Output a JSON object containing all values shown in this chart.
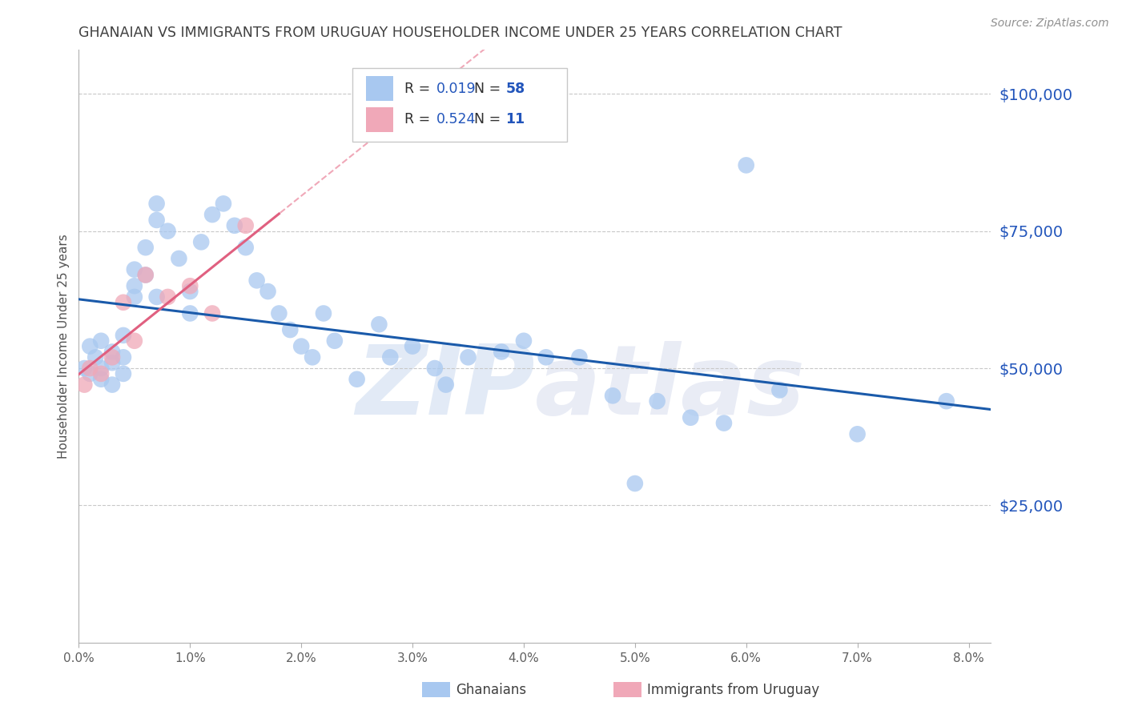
{
  "title": "GHANAIAN VS IMMIGRANTS FROM URUGUAY HOUSEHOLDER INCOME UNDER 25 YEARS CORRELATION CHART",
  "source": "Source: ZipAtlas.com",
  "ylabel": "Householder Income Under 25 years",
  "ytick_labels": [
    "$25,000",
    "$50,000",
    "$75,000",
    "$100,000"
  ],
  "ytick_values": [
    25000,
    50000,
    75000,
    100000
  ],
  "legend_R1": "0.019",
  "legend_N1": "58",
  "legend_R2": "0.524",
  "legend_N2": "11",
  "scatter_blue": "#a8c8f0",
  "scatter_pink": "#f0a8b8",
  "blue_line_color": "#1a5aaa",
  "pink_line_color": "#e06080",
  "dashed_line_color": "#f0a8b8",
  "background_color": "#ffffff",
  "grid_color": "#c8c8c8",
  "title_color": "#404040",
  "yaxis_label_color": "#2255bb",
  "watermark_color": "#d0ddf0",
  "text_dark": "#303030",
  "xmin": 0.0,
  "xmax": 0.082,
  "ymin": 0,
  "ymax": 108000,
  "ghana_x": [
    0.0005,
    0.001,
    0.001,
    0.0015,
    0.002,
    0.002,
    0.002,
    0.003,
    0.003,
    0.003,
    0.004,
    0.004,
    0.004,
    0.005,
    0.005,
    0.005,
    0.006,
    0.006,
    0.007,
    0.007,
    0.007,
    0.008,
    0.009,
    0.01,
    0.01,
    0.011,
    0.012,
    0.013,
    0.014,
    0.015,
    0.016,
    0.017,
    0.018,
    0.019,
    0.02,
    0.021,
    0.022,
    0.023,
    0.025,
    0.027,
    0.028,
    0.03,
    0.032,
    0.033,
    0.035,
    0.038,
    0.04,
    0.042,
    0.045,
    0.048,
    0.05,
    0.052,
    0.055,
    0.058,
    0.06,
    0.063,
    0.07,
    0.078
  ],
  "ghana_y": [
    50000,
    54000,
    49000,
    52000,
    55000,
    50000,
    48000,
    53000,
    51000,
    47000,
    56000,
    52000,
    49000,
    65000,
    68000,
    63000,
    72000,
    67000,
    80000,
    77000,
    63000,
    75000,
    70000,
    64000,
    60000,
    73000,
    78000,
    80000,
    76000,
    72000,
    66000,
    64000,
    60000,
    57000,
    54000,
    52000,
    60000,
    55000,
    48000,
    58000,
    52000,
    54000,
    50000,
    47000,
    52000,
    53000,
    55000,
    52000,
    52000,
    45000,
    29000,
    44000,
    41000,
    40000,
    87000,
    46000,
    38000,
    44000
  ],
  "uruguay_x": [
    0.0005,
    0.001,
    0.002,
    0.003,
    0.004,
    0.005,
    0.006,
    0.008,
    0.01,
    0.012,
    0.015
  ],
  "uruguay_y": [
    47000,
    50000,
    49000,
    52000,
    62000,
    55000,
    67000,
    63000,
    65000,
    60000,
    76000
  ]
}
